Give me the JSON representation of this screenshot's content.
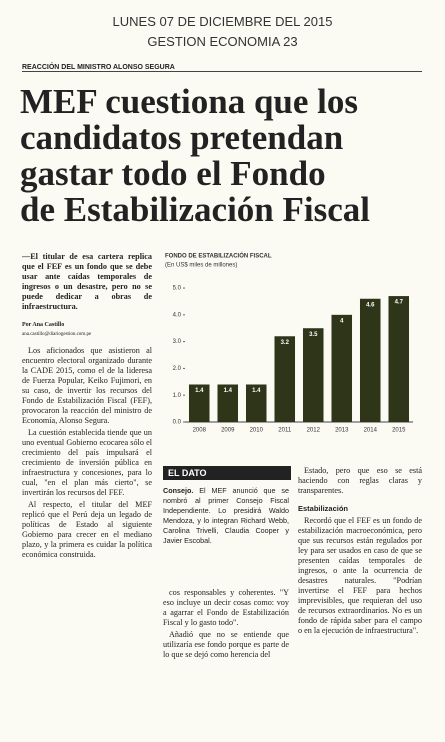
{
  "header": {
    "date": "LUNES 07 DE DICIEMBRE DEL 2015",
    "section": "GESTION ECONOMIA 23"
  },
  "kicker": "REACCIÓN DEL MINISTRO ALONSO SEGURA",
  "headline": [
    "MEF cuestiona que los",
    "candidatos pretendan",
    "gastar todo el Fondo",
    "de Estabilización Fiscal"
  ],
  "lead": "—El titular de esa cartera replica que el FEF es un fondo que se debe usar ante caídas temporales de ingresos o un desastre, pero no se puede dedicar a obras de infraestructura.",
  "byline": {
    "author": "Por Ana Castillo",
    "email": "ana.castillo@diariogestion.com.pe"
  },
  "column1": [
    "Los aficionados que asistieron al encuentro electoral organizado durante la CADE 2015, como el de la lideresa de Fuerza Popular, Keiko Fujimori, en su caso, de invertir los recursos del Fondo de Estabilización Fiscal (FEF), provocaron la reacción del ministro de Economía, Alonso Segura.",
    "La cuestión establecida tiende que un uno eventual Gobierno ecocarea sólo el crecimiento del país impulsará el crecimiento de inversión pública en infraestructura y concesiones, para lo cual, \"en el plan más cierto\", se invertirán los recursos del FEF.",
    "Al respecto, el titular del MEF replicó que el Perú deja un legado de políticas de Estado al siguiente Gobierno para crecer en el mediano plazo, y la primera es cuidar la política económica construida."
  ],
  "dato": {
    "label": "EL DATO",
    "lead": "Consejo.",
    "text": "El MEF anunció que se nombró al primer Consejo Fiscal Independiente. Lo presidirá Waldo Mendoza, y lo integran Richard Webb, Carolina Trivelli, Claudia Cooper y Javier Escobal."
  },
  "column2": [
    "cos responsables y coherentes. \"Y eso incluye un decir cosas como: voy a agarrar el Fondo de Estabilización Fiscal y lo gasto todo\".",
    "Añadió que no se entiende que utilizaría ese fondo porque es parte de lo que se dejó como herencia del"
  ],
  "column3": [
    "Estado, pero que eso se está haciendo con reglas claras y transparentes."
  ],
  "subhead": "Estabilización",
  "column3b": [
    "Recordó que el FEF es un fondo de estabilización macroeconómica, pero que sus recursos están regulados por ley para ser usados en caso de que se presenten caídas temporales de ingresos, o ante la ocurrencia de desastres naturales. \"Podrían invertirse el FEF para hechos imprevisibles, que requieran del uso de recursos extraordinarios. No es un fondo de rápida saber para el campo o en la ejecución de infraestructura\"."
  ],
  "chart_data": {
    "type": "bar",
    "title": "FONDO DE ESTABILIZACIÓN FISCAL",
    "subtitle": "(En US$ miles de millones)",
    "categories": [
      "2008",
      "2009",
      "2010",
      "2011",
      "2012",
      "2013",
      "2014",
      "2015"
    ],
    "values": [
      1.4,
      1.4,
      1.4,
      3.2,
      3.5,
      4.0,
      4.6,
      4.7
    ],
    "color": "#2e3519",
    "ylim": [
      0,
      5.3
    ],
    "yticks": [
      {
        "value": 0,
        "label": "0.0"
      },
      {
        "value": 1,
        "label": "1.0"
      },
      {
        "value": 2,
        "label": "2.0"
      },
      {
        "value": 3,
        "label": "3.0"
      },
      {
        "value": 4,
        "label": "4.0"
      },
      {
        "value": 5,
        "label": "5.0"
      }
    ]
  }
}
